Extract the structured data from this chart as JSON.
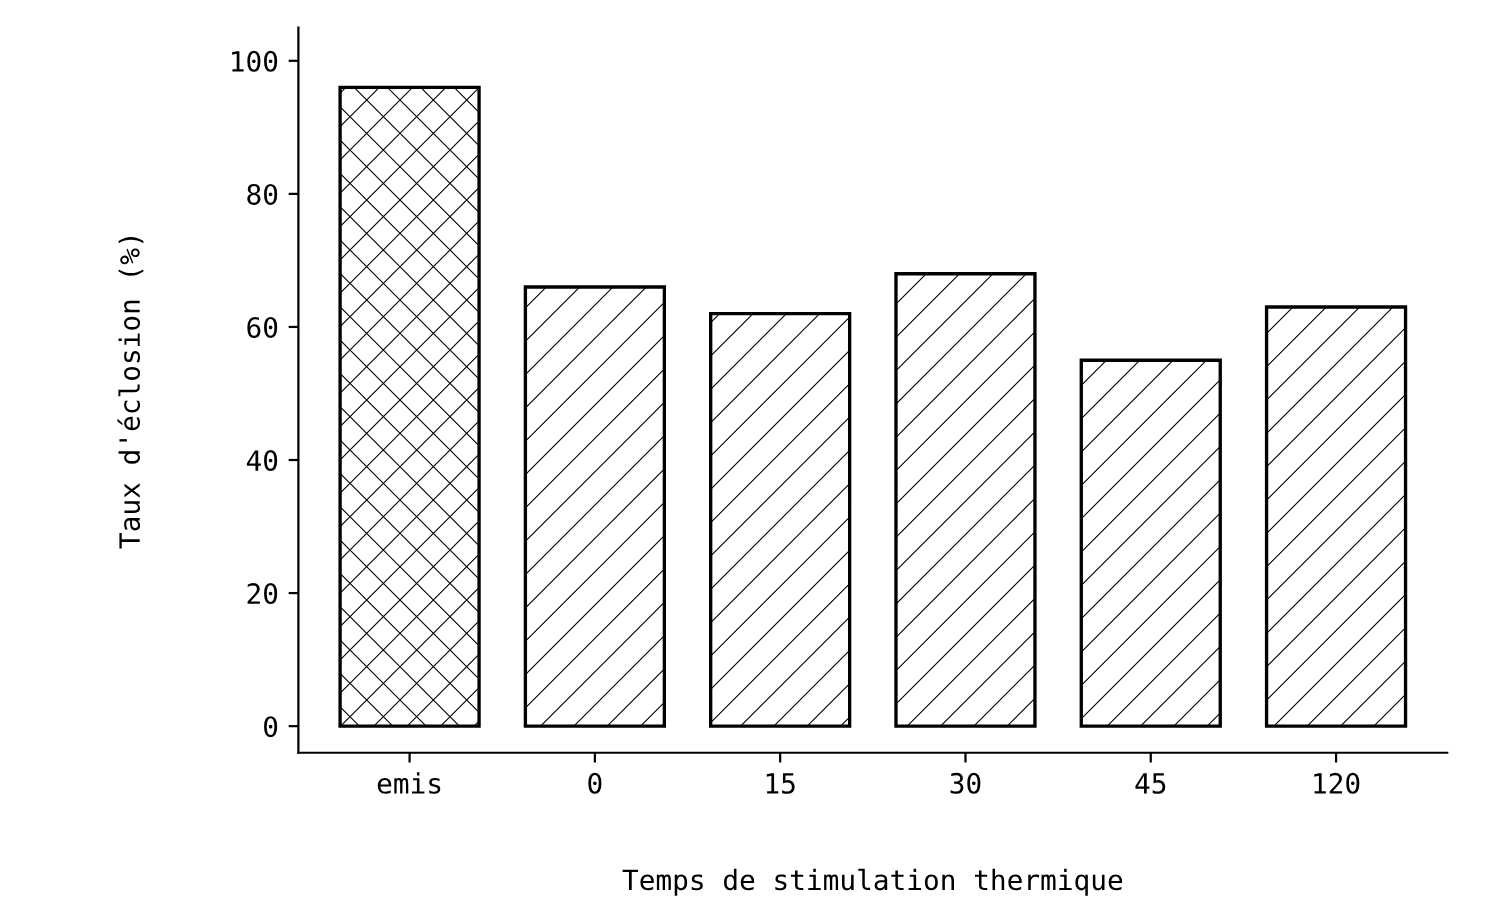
{
  "chart_data": {
    "type": "bar",
    "xlabel": "Temps de stimulation thermique",
    "ylabel": "Taux d'éclosion (%)",
    "categories": [
      "emis",
      "0",
      "15",
      "30",
      "45",
      "120"
    ],
    "values": [
      96,
      66,
      62,
      68,
      55,
      63
    ],
    "colors": [
      "#000000",
      "#000000",
      "#000000",
      "#000000",
      "#000000",
      "#000000"
    ],
    "ylim": [
      -4,
      105
    ],
    "yticks": [
      0,
      20,
      40,
      60,
      80,
      100
    ],
    "grid": false
  }
}
